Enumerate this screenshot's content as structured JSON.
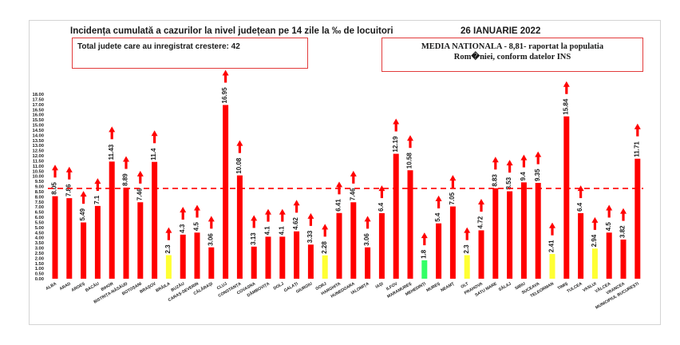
{
  "header": {
    "title": "Incidența cumulată a cazurilor la nivel județean pe 14 zile la ‰ de locuitori",
    "date": "26 IANUARIE 2022",
    "box_left": "Total judete care au inregistrat crestere: 42",
    "box_right_line1": "MEDIA NATIONALA - 8,81-   raportat la populatia",
    "box_right_line2": "Rom�niei, conform datelor INS"
  },
  "colors": {
    "bar": "#ff0000",
    "low": "#ffff33",
    "lowest": "#33ff66",
    "arrow": "#ff0000",
    "mean_line": "#ff0000"
  },
  "chart_data": {
    "type": "bar",
    "ylim": [
      0,
      18
    ],
    "yticks": [
      "0.00",
      "0.50",
      "1.00",
      "1.50",
      "2.00",
      "2.50",
      "3.00",
      "3.50",
      "4.00",
      "4.50",
      "5.00",
      "5.50",
      "6.00",
      "6.50",
      "7.00",
      "7.50",
      "8.00",
      "8.50",
      "9.00",
      "9.50",
      "10.00",
      "10.50",
      "11.00",
      "11.50",
      "12.00",
      "12.50",
      "13.00",
      "13.50",
      "14.00",
      "14.50",
      "15.00",
      "15.50",
      "16.00",
      "16.50",
      "17.00",
      "17.50",
      "18.00"
    ],
    "mean": 8.81,
    "categories": [
      "ALBA",
      "ARAD",
      "ARGEȘ",
      "BACĂU",
      "BIHOR",
      "BISTRIȚA-NĂSĂUD",
      "BOTOȘANI",
      "BRAȘOV",
      "BRĂILA",
      "BUZĂU",
      "CARAȘ-SEVERIN",
      "CĂLĂRAȘI",
      "CLUJ",
      "CONSTANȚA",
      "COVASNA",
      "DÂMBOVIȚA",
      "DOLJ",
      "GALAȚI",
      "GIURGIU",
      "GORJ",
      "HARGHITA",
      "HUNEDOARA",
      "IALOMIȚA",
      "IAȘI",
      "ILFOV",
      "MARAMUREȘ",
      "MEHEDINȚI",
      "MUREȘ",
      "NEAMȚ",
      "OLT",
      "PRAHOVA",
      "SATU MARE",
      "SĂLAJ",
      "SIBIU",
      "SUCEAVA",
      "TELEORMAN",
      "TIMIȘ",
      "TULCEA",
      "VASLUI",
      "VÂLCEA",
      "VRANCEA",
      "MUNICIPIUL BUCUREȘTI"
    ],
    "values": [
      8.05,
      7.86,
      5.49,
      7.1,
      11.43,
      8.89,
      7.46,
      11.4,
      2.3,
      4.3,
      4.5,
      3.06,
      16.95,
      10.08,
      3.13,
      4.1,
      4.1,
      4.62,
      3.33,
      2.28,
      6.41,
      7.46,
      3.06,
      6.4,
      12.19,
      10.58,
      1.8,
      5.4,
      7.05,
      2.3,
      4.72,
      8.83,
      8.53,
      9.4,
      9.35,
      2.41,
      15.84,
      6.4,
      2.94,
      4.5,
      3.82,
      11.71
    ],
    "labels": [
      "8.05",
      "7.86",
      "5.49",
      "7.1",
      "11.43",
      "8.89",
      "7.46",
      "11.4",
      "2.3",
      "4.3",
      "4.5",
      "3.06",
      "16.95",
      "10.08",
      "3.13",
      "4.1",
      "4.1",
      "4.62",
      "3.33",
      "2.28",
      "6.41",
      "7.46",
      "3.06",
      "6.4",
      "12.19",
      "10.58",
      "1.8",
      "5.4",
      "7.05",
      "2.3",
      "4.72",
      "8.83",
      "8.53",
      "9.4",
      "9.35",
      "2.41",
      "15.84",
      "6.4",
      "2.94",
      "4.5",
      "3.82",
      "11.71"
    ],
    "colors": [
      "red",
      "red",
      "red",
      "red",
      "red",
      "red",
      "red",
      "red",
      "yellow",
      "red",
      "red",
      "red",
      "red",
      "red",
      "red",
      "red",
      "red",
      "red",
      "red",
      "yellow",
      "red",
      "red",
      "red",
      "red",
      "red",
      "red",
      "green",
      "red",
      "red",
      "yellow",
      "red",
      "red",
      "red",
      "red",
      "red",
      "yellow",
      "red",
      "red",
      "yellow",
      "red",
      "red",
      "red"
    ],
    "arrows": [
      "up",
      "up",
      "up",
      "up",
      "up",
      "up",
      "up",
      "up",
      "up",
      "up",
      "up",
      "up",
      "up",
      "up",
      "up",
      "up",
      "up",
      "up",
      "up",
      "up",
      "up",
      "up",
      "up",
      "up",
      "up",
      "up",
      "up",
      "up",
      "up",
      "up",
      "up",
      "up",
      "up",
      "up",
      "up",
      "up",
      "up",
      "up",
      "up",
      "up",
      "up",
      "up"
    ],
    "legend": "none",
    "grid": false
  }
}
